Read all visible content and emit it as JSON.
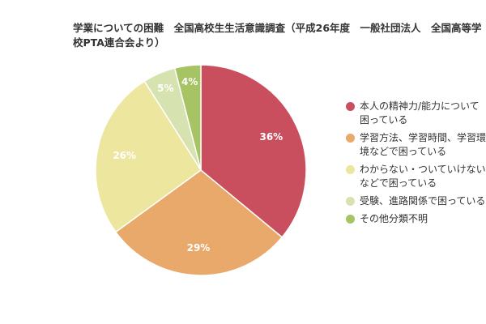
{
  "chart_data": {
    "type": "pie",
    "title": "学業についての困難　全国高校生生活意識調査（平成26年度　一般社団法人　全国高等学校PTA連合会より）",
    "categories": [
      "本人の精神力/能力について困っている",
      "学習方法、学習時間、学習環境などで困っている",
      "わからない・ついていけないなどで困っている",
      "受験、進路関係で困っている",
      "その他分類不明"
    ],
    "values": [
      36,
      29,
      26,
      5,
      4
    ],
    "value_labels": [
      "36%",
      "29%",
      "26%",
      "5%",
      "4%"
    ],
    "colors": [
      "#c94f5f",
      "#e8a96a",
      "#ede69e",
      "#d6e3b0",
      "#a6c463"
    ],
    "start": "top",
    "direction": "clockwise",
    "legend": "right"
  }
}
